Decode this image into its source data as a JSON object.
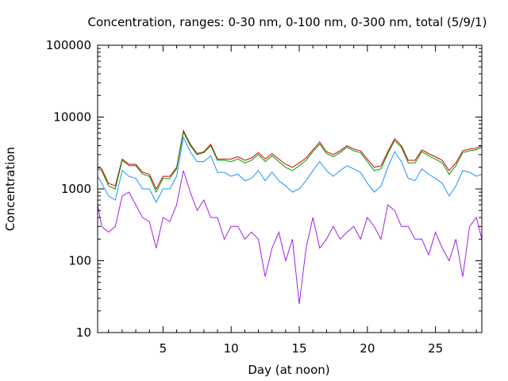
{
  "chart_data": {
    "type": "line",
    "title": "Concentration, ranges: 0-30 nm, 0-100 nm, 0-300 nm, total (5/9/1)",
    "xlabel": "Day (at noon)",
    "ylabel": "Concentration",
    "xlim": [
      0.2,
      28.4
    ],
    "ylim": [
      10,
      100000
    ],
    "y_scale": "log",
    "x_ticks": [
      5,
      10,
      15,
      20,
      25
    ],
    "x_tick_labels": [
      "5",
      "10",
      "15",
      "20",
      "25"
    ],
    "y_ticks": [
      10,
      100,
      1000,
      10000,
      100000
    ],
    "y_tick_labels": [
      "10",
      "100",
      "1000",
      "10000",
      "100000"
    ],
    "grid": false,
    "legend": "none",
    "series": [
      {
        "color": "#cc0000",
        "x": [
          0.2,
          0.5,
          1,
          1.5,
          2,
          2.5,
          3,
          3.5,
          4,
          4.5,
          5,
          5.5,
          6,
          6.5,
          7,
          7.5,
          8,
          8.5,
          9,
          9.5,
          10,
          10.5,
          11,
          11.5,
          12,
          12.5,
          13,
          13.5,
          14,
          14.5,
          15,
          15.5,
          16,
          16.5,
          17,
          17.5,
          18,
          18.5,
          19,
          19.5,
          20,
          20.5,
          21,
          21.5,
          22,
          22.5,
          23,
          23.5,
          24,
          24.5,
          25,
          25.5,
          26,
          26.5,
          27,
          27.5,
          28,
          28.4
        ],
        "values": [
          2000,
          1900,
          1200,
          1100,
          2600,
          2200,
          2200,
          1700,
          1600,
          1000,
          1500,
          1500,
          2000,
          6500,
          4200,
          3100,
          3300,
          4200,
          2600,
          2600,
          2600,
          2800,
          2500,
          2700,
          3200,
          2600,
          3100,
          2600,
          2200,
          2000,
          2300,
          2700,
          3500,
          4500,
          3300,
          3000,
          3400,
          4000,
          3600,
          3400,
          2600,
          2000,
          2100,
          3300,
          5000,
          4000,
          2500,
          2500,
          3500,
          3100,
          2800,
          2500,
          1800,
          2300,
          3400,
          3600,
          3700,
          4000
        ]
      },
      {
        "color": "#009900",
        "x": [
          0.2,
          0.5,
          1,
          1.5,
          2,
          2.5,
          3,
          3.5,
          4,
          4.5,
          5,
          5.5,
          6,
          6.5,
          7,
          7.5,
          8,
          8.5,
          9,
          9.5,
          10,
          10.5,
          11,
          11.5,
          12,
          12.5,
          13,
          13.5,
          14,
          14.5,
          15,
          15.5,
          16,
          16.5,
          17,
          17.5,
          18,
          18.5,
          19,
          19.5,
          20,
          20.5,
          21,
          21.5,
          22,
          22.5,
          23,
          23.5,
          24,
          24.5,
          25,
          25.5,
          26,
          26.5,
          27,
          27.5,
          28,
          28.4
        ],
        "values": [
          1900,
          1800,
          1100,
          1000,
          2500,
          2100,
          2100,
          1600,
          1500,
          900,
          1400,
          1400,
          1900,
          6200,
          4000,
          3000,
          3200,
          4000,
          2500,
          2500,
          2400,
          2600,
          2300,
          2500,
          3000,
          2400,
          2900,
          2400,
          2000,
          1800,
          2100,
          2500,
          3300,
          4200,
          3100,
          2800,
          3200,
          3800,
          3400,
          3200,
          2400,
          1800,
          1900,
          3100,
          4700,
          3800,
          2300,
          2300,
          3300,
          2900,
          2600,
          2300,
          1600,
          2100,
          3200,
          3400,
          3500,
          3800
        ]
      },
      {
        "color": "#1e90ff",
        "x": [
          0.2,
          0.5,
          1,
          1.5,
          2,
          2.5,
          3,
          3.5,
          4,
          4.5,
          5,
          5.5,
          6,
          6.5,
          7,
          7.5,
          8,
          8.5,
          9,
          9.5,
          10,
          10.5,
          11,
          11.5,
          12,
          12.5,
          13,
          13.5,
          14,
          14.5,
          15,
          15.5,
          16,
          16.5,
          17,
          17.5,
          18,
          18.5,
          19,
          19.5,
          20,
          20.5,
          21,
          21.5,
          22,
          22.5,
          23,
          23.5,
          24,
          24.5,
          25,
          25.5,
          26,
          26.5,
          27,
          27.5,
          28,
          28.4
        ],
        "values": [
          1500,
          1200,
          800,
          700,
          1800,
          1500,
          1400,
          1000,
          1000,
          650,
          1000,
          1000,
          1500,
          5200,
          3300,
          2400,
          2400,
          2900,
          1700,
          1700,
          1500,
          1600,
          1300,
          1400,
          1800,
          1300,
          1700,
          1300,
          1100,
          900,
          1000,
          1300,
          1800,
          2400,
          1800,
          1500,
          1800,
          2100,
          1900,
          1700,
          1200,
          900,
          1100,
          2000,
          3300,
          2400,
          1400,
          1300,
          1900,
          1600,
          1400,
          1200,
          800,
          1100,
          1800,
          1700,
          1500,
          1600
        ]
      },
      {
        "color": "#a020f0",
        "x": [
          0.2,
          0.5,
          1,
          1.5,
          2,
          2.5,
          3,
          3.5,
          4,
          4.5,
          5,
          5.5,
          6,
          6.5,
          7,
          7.5,
          8,
          8.5,
          9,
          9.5,
          10,
          10.5,
          11,
          11.5,
          12,
          12.5,
          13,
          13.5,
          14,
          14.5,
          15,
          15.5,
          16,
          16.5,
          17,
          17.5,
          18,
          18.5,
          19,
          19.5,
          20,
          20.5,
          21,
          21.5,
          22,
          22.5,
          23,
          23.5,
          24,
          24.5,
          25,
          25.5,
          26,
          26.5,
          27,
          27.5,
          28,
          28.4
        ],
        "values": [
          600,
          300,
          250,
          300,
          800,
          900,
          600,
          400,
          350,
          150,
          400,
          350,
          600,
          1800,
          900,
          500,
          700,
          400,
          400,
          200,
          300,
          300,
          200,
          250,
          200,
          60,
          150,
          250,
          100,
          200,
          25,
          150,
          400,
          150,
          200,
          300,
          200,
          250,
          300,
          200,
          400,
          300,
          200,
          600,
          500,
          300,
          300,
          200,
          200,
          120,
          250,
          150,
          100,
          200,
          60,
          300,
          400,
          200
        ]
      }
    ]
  }
}
